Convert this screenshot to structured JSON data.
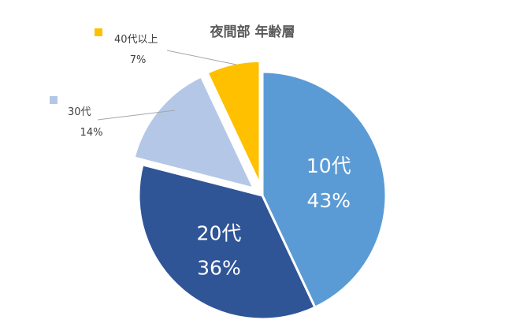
{
  "chart_data": {
    "type": "pie",
    "title": "夜間部 年齢層",
    "slices": [
      {
        "name": "10代",
        "value": 43,
        "label": "43%",
        "color": "#5b9bd5",
        "exploded": false,
        "label_position": "inside"
      },
      {
        "name": "20代",
        "value": 36,
        "label": "36%",
        "color": "#2f5597",
        "exploded": false,
        "label_position": "inside"
      },
      {
        "name": "30代",
        "value": 14,
        "label": "14%",
        "color": "#b4c7e7",
        "exploded": true,
        "label_position": "outside"
      },
      {
        "name": "40代以上",
        "value": 7,
        "label": "7%",
        "color": "#ffc000",
        "exploded": true,
        "label_position": "outside"
      }
    ],
    "start_angle": "12 o'clock",
    "direction": "clockwise",
    "legend": "none",
    "labels_include": [
      "category",
      "percent"
    ]
  }
}
